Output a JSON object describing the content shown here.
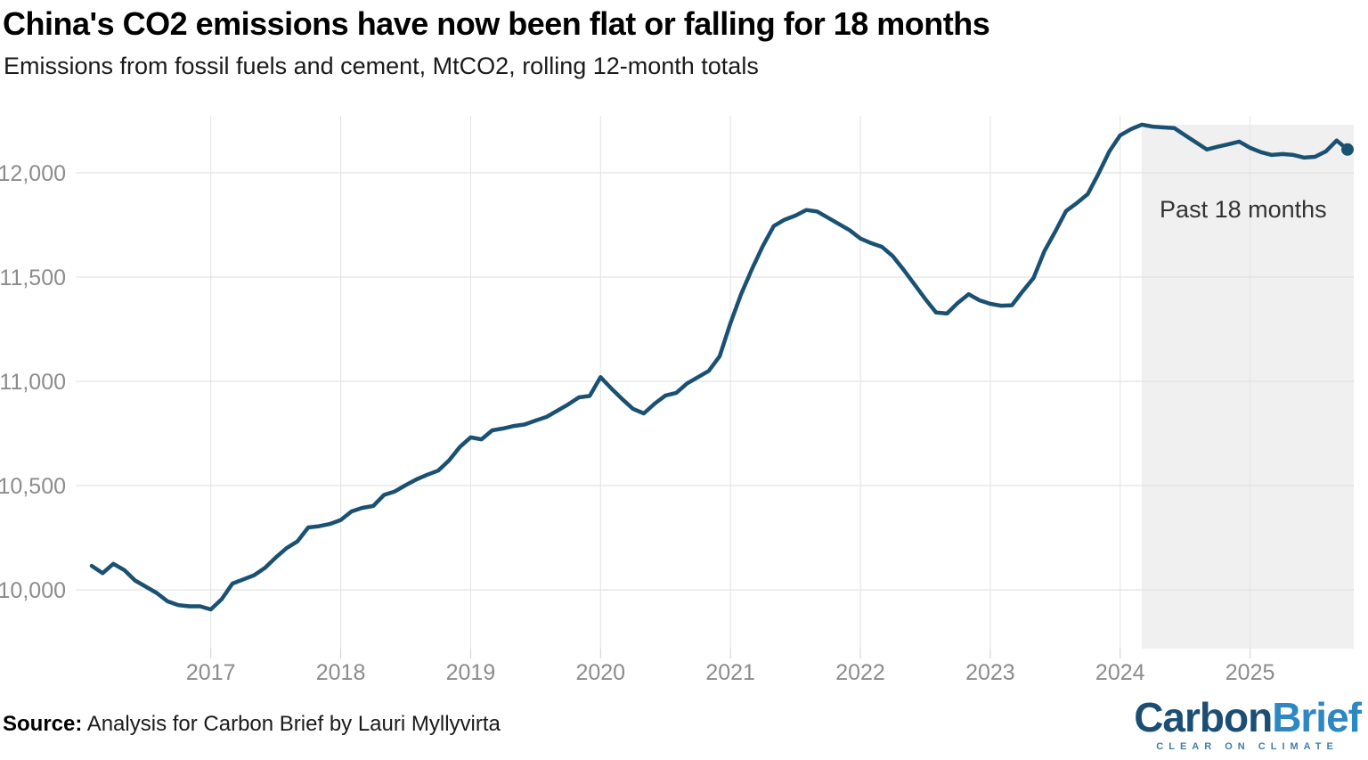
{
  "header": {
    "title": "China's CO2 emissions have now been flat or falling for 18 months",
    "subtitle": "Emissions from fossil fuels and cement, MtCO2, rolling 12-month totals"
  },
  "chart_data": {
    "type": "line",
    "title": "China's CO2 emissions have now been flat or falling for 18 months",
    "xlabel": "",
    "ylabel": "MtCO2, rolling 12-month totals",
    "x_frequency": "monthly",
    "x_start_month": "2016-02",
    "x_end_month": "2025-10",
    "x_tick_labels": [
      "2017",
      "2018",
      "2019",
      "2020",
      "2021",
      "2022",
      "2023",
      "2024",
      "2025"
    ],
    "y_ticks": [
      10000,
      10500,
      11000,
      11500,
      12000
    ],
    "y_tick_labels": [
      "10,000",
      "10,500",
      "11,000",
      "11,500",
      "12,000"
    ],
    "ylim": [
      9700,
      12240
    ],
    "grid": true,
    "legend": "none",
    "line_color": "#1a5173",
    "grid_color": "#dcdcdc",
    "tick_label_color": "#8c8c8c",
    "shade_color": "#f0f0f0",
    "annotation": {
      "label": "Past 18 months",
      "region_months": 18,
      "label_color": "#333333"
    },
    "end_point_marker": true,
    "series": [
      {
        "name": "China CO2 emissions (MtCO2, rolling 12-month total)",
        "monthly_values": [
          10115,
          10080,
          10125,
          10095,
          10045,
          10015,
          9985,
          9945,
          9927,
          9921,
          9921,
          9906,
          9955,
          10030,
          10050,
          10070,
          10105,
          10155,
          10200,
          10232,
          10299,
          10305,
          10316,
          10335,
          10376,
          10393,
          10402,
          10455,
          10472,
          10502,
          10530,
          10552,
          10572,
          10620,
          10685,
          10731,
          10722,
          10765,
          10774,
          10786,
          10793,
          10812,
          10829,
          10859,
          10889,
          10923,
          10930,
          11020,
          10966,
          10915,
          10868,
          10846,
          10893,
          10932,
          10945,
          10990,
          11020,
          11050,
          11120,
          11280,
          11420,
          11540,
          11650,
          11745,
          11775,
          11795,
          11822,
          11815,
          11785,
          11755,
          11725,
          11685,
          11663,
          11645,
          11600,
          11535,
          11465,
          11395,
          11330,
          11325,
          11376,
          11418,
          11389,
          11372,
          11363,
          11365,
          11432,
          11496,
          11625,
          11718,
          11817,
          11855,
          11898,
          11996,
          12103,
          12180,
          12210,
          12231,
          12222,
          12218,
          12215,
          12180,
          12146,
          12112,
          12125,
          12137,
          12150,
          12120,
          12099,
          12086,
          12090,
          12086,
          12073,
          12077,
          12103,
          12155,
          12112
        ]
      }
    ]
  },
  "footer": {
    "source_label": "Source:",
    "source_text": " Analysis for Carbon Brief by Lauri Myllyvirta"
  },
  "logo": {
    "part1": "Carbon",
    "part2": "Brief",
    "tagline": "CLEAR ON CLIMATE"
  }
}
